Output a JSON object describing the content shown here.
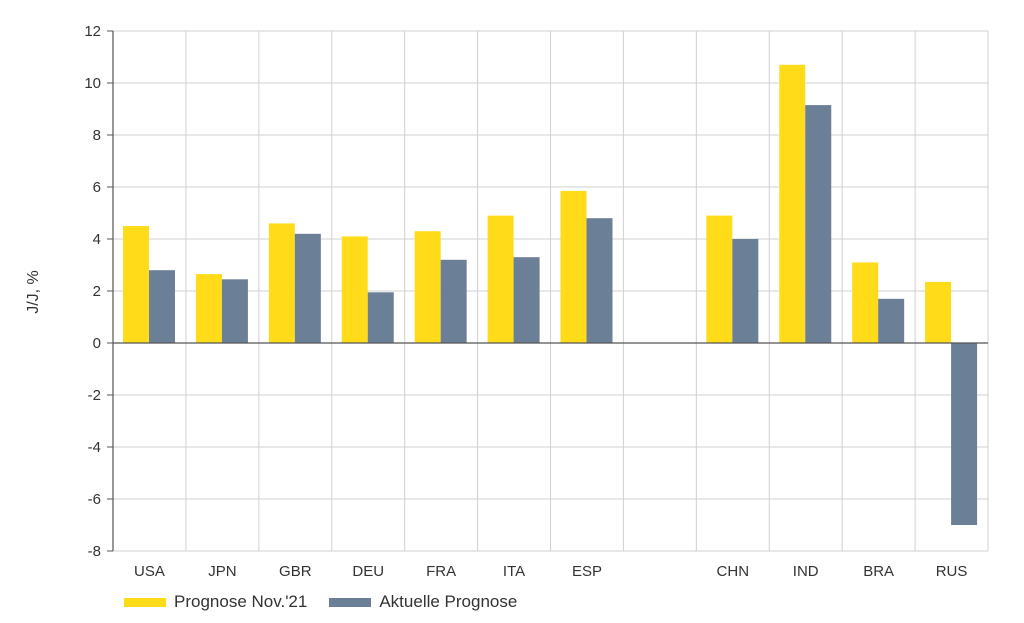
{
  "chart_data": {
    "type": "bar",
    "ylabel": "J/J, %",
    "ylim": [
      -8,
      12
    ],
    "yticks": [
      12,
      10,
      8,
      6,
      4,
      2,
      0,
      -2,
      -4,
      -6,
      -8
    ],
    "grid": true,
    "legend_position": "bottom-left",
    "categories": [
      "USA",
      "JPN",
      "GBR",
      "DEU",
      "FRA",
      "ITA",
      "ESP",
      "",
      "CHN",
      "IND",
      "BRA",
      "RUS"
    ],
    "series": [
      {
        "name": "Prognose Nov.'21",
        "color": "#FFDB1A",
        "values": [
          4.5,
          2.65,
          4.6,
          4.1,
          4.3,
          4.9,
          5.85,
          null,
          4.9,
          10.7,
          3.1,
          2.35
        ]
      },
      {
        "name": "Aktuelle Prognose",
        "color": "#6B7F96",
        "values": [
          2.8,
          2.45,
          4.2,
          1.95,
          3.2,
          3.3,
          4.8,
          null,
          4.0,
          9.15,
          1.7,
          -7.0
        ]
      }
    ]
  }
}
